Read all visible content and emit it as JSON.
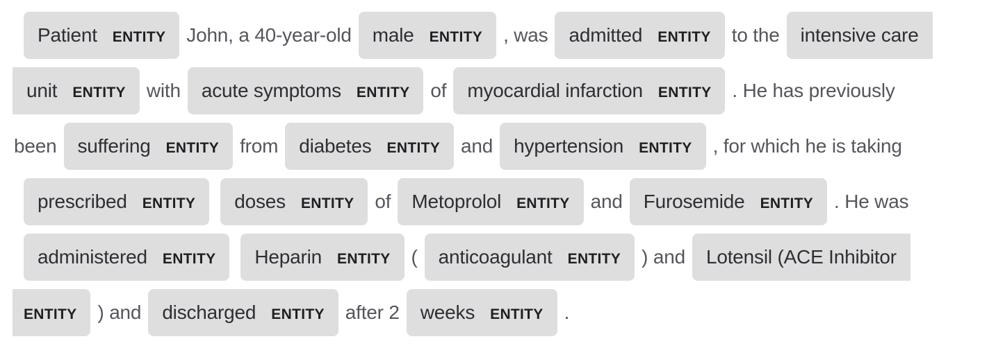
{
  "entity_label": "ENTITY",
  "lines": [
    [
      {
        "t": "ent",
        "text": "Patient"
      },
      {
        "t": "txt",
        "text": "John, a 40-year-old"
      },
      {
        "t": "ent",
        "text": "male"
      },
      {
        "t": "txt",
        "text": ", was"
      },
      {
        "t": "ent",
        "text": "admitted"
      },
      {
        "t": "txt",
        "text": "to the"
      },
      {
        "t": "ent-start",
        "text": "intensive care"
      }
    ],
    [
      {
        "t": "ent-end",
        "text": "unit"
      },
      {
        "t": "txt",
        "text": "with"
      },
      {
        "t": "ent",
        "text": "acute symptoms"
      },
      {
        "t": "txt",
        "text": "of"
      },
      {
        "t": "ent",
        "text": "myocardial infarction"
      },
      {
        "t": "txt",
        "text": ". He has previously"
      }
    ],
    [
      {
        "t": "txt",
        "text": "been"
      },
      {
        "t": "ent",
        "text": "suffering"
      },
      {
        "t": "txt",
        "text": "from"
      },
      {
        "t": "ent",
        "text": "diabetes"
      },
      {
        "t": "txt",
        "text": "and"
      },
      {
        "t": "ent",
        "text": "hypertension"
      },
      {
        "t": "txt",
        "text": ", for which he is taking"
      }
    ],
    [
      {
        "t": "ent",
        "text": "prescribed"
      },
      {
        "t": "ent",
        "text": "doses"
      },
      {
        "t": "txt",
        "text": "of"
      },
      {
        "t": "ent",
        "text": "Metoprolol"
      },
      {
        "t": "txt",
        "text": "and"
      },
      {
        "t": "ent",
        "text": "Furosemide"
      },
      {
        "t": "txt",
        "text": ". He was"
      }
    ],
    [
      {
        "t": "ent",
        "text": "administered"
      },
      {
        "t": "ent",
        "text": "Heparin"
      },
      {
        "t": "txt",
        "text": "("
      },
      {
        "t": "ent",
        "text": "anticoagulant"
      },
      {
        "t": "txt",
        "text": ") and"
      },
      {
        "t": "ent-start",
        "text": "Lotensil (ACE Inhibitor"
      }
    ],
    [
      {
        "t": "ent-end-lbl",
        "text": ""
      },
      {
        "t": "txt",
        "text": ") and"
      },
      {
        "t": "ent",
        "text": "discharged"
      },
      {
        "t": "txt",
        "text": "after 2"
      },
      {
        "t": "ent",
        "text": "weeks"
      },
      {
        "t": "txt",
        "text": "."
      }
    ]
  ]
}
